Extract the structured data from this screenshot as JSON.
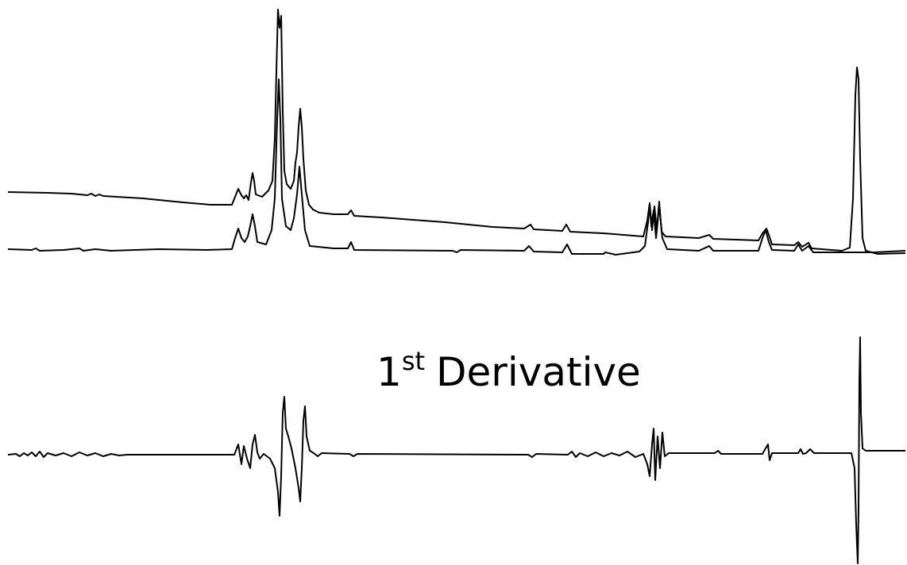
{
  "label": {
    "number": "1",
    "superscript": "st",
    "text": "Derivative"
  }
}
